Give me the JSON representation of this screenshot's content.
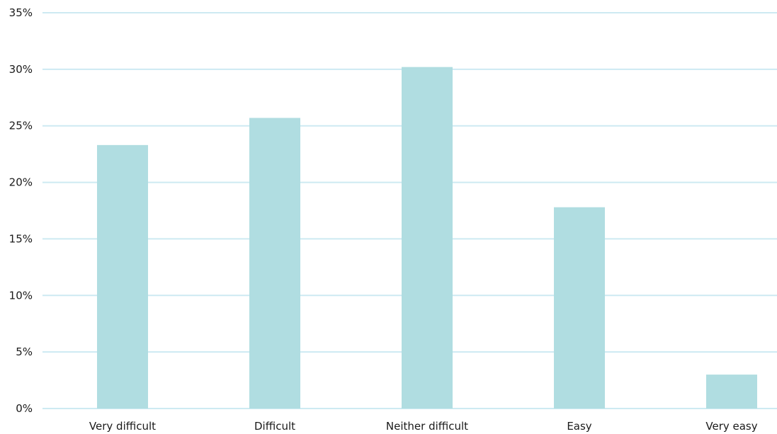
{
  "chart_data": {
    "type": "bar",
    "title": "",
    "xlabel": "",
    "ylabel": "",
    "categories": [
      "Very difficult",
      "Difficult",
      "Neither difficult",
      "Easy",
      "Very easy"
    ],
    "values": [
      23.3,
      25.7,
      30.2,
      17.8,
      3.0
    ],
    "ylim": [
      0,
      35
    ],
    "yticks": [
      0,
      5,
      10,
      15,
      20,
      25,
      30,
      35
    ],
    "ytick_labels": [
      "0%",
      "5%",
      "10%",
      "15%",
      "20%",
      "25%",
      "30%",
      "35%"
    ],
    "grid": true,
    "legend": false,
    "colors": {
      "bar": "#b0dde1",
      "grid": "#cdeaf2",
      "text": "#1a1a1a"
    }
  }
}
